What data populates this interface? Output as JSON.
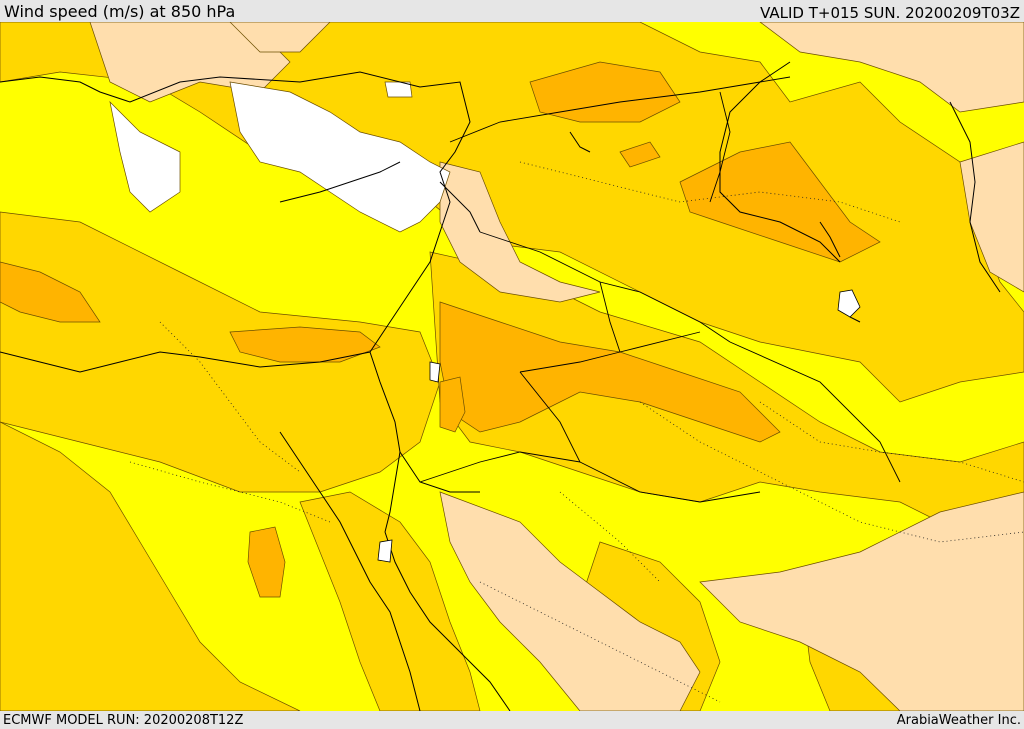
{
  "header": {
    "title": "Wind speed (m/s) at 850 hPa",
    "valid": "VALID T+015 SUN. 20200209T03Z"
  },
  "footer": {
    "model_run": "ECMWF MODEL RUN: 20200208T12Z",
    "credit": "ArabiaWeather Inc."
  },
  "colors": {
    "band_low": "#ffffff",
    "band_1": "#ffdead",
    "band_2": "#ffff00",
    "band_3": "#ffd700",
    "band_4": "#ffb400",
    "band_5": "#f5a000",
    "coastline": "#000000",
    "border": "#000000"
  }
}
